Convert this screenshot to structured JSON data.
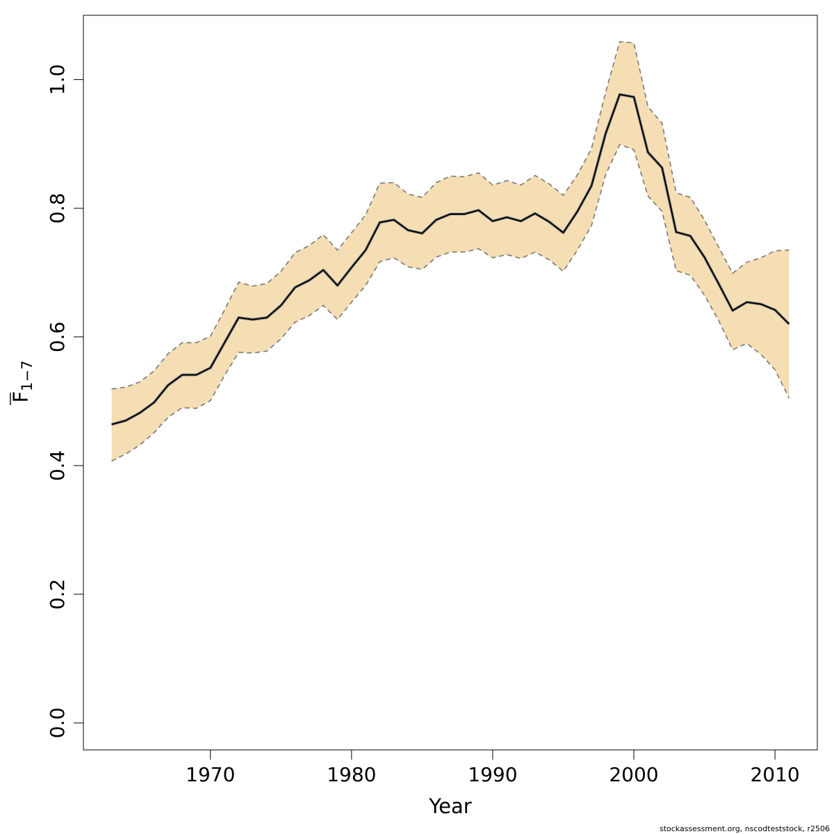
{
  "chart_data": {
    "type": "area",
    "xlabel": "Year",
    "ylabel": {
      "main": "F",
      "sub": "1−7"
    },
    "xlim": [
      1961,
      2013
    ],
    "ylim": [
      -0.042,
      1.1
    ],
    "xticks": [
      1970,
      1980,
      1990,
      2000,
      2010
    ],
    "yticks": [
      0.0,
      0.2,
      0.4,
      0.6,
      0.8,
      1.0
    ],
    "yticklabels": [
      "0.0",
      "0.2",
      "0.4",
      "0.6",
      "0.8",
      "1.0"
    ],
    "grid": false,
    "band_color": "#f5deb3",
    "line_color": "#000000",
    "bound_color": "#777777",
    "x": [
      1963,
      1964,
      1965,
      1966,
      1967,
      1968,
      1969,
      1970,
      1971,
      1972,
      1973,
      1974,
      1975,
      1976,
      1977,
      1978,
      1979,
      1980,
      1981,
      1982,
      1983,
      1984,
      1985,
      1986,
      1987,
      1988,
      1989,
      1990,
      1991,
      1992,
      1993,
      1994,
      1995,
      1996,
      1997,
      1998,
      1999,
      2000,
      2001,
      2002,
      2003,
      2004,
      2005,
      2006,
      2007,
      2008,
      2009,
      2010,
      2011
    ],
    "series": [
      {
        "role": "estimate",
        "values": [
          0.464,
          0.47,
          0.482,
          0.498,
          0.525,
          0.541,
          0.541,
          0.552,
          0.591,
          0.63,
          0.627,
          0.63,
          0.649,
          0.677,
          0.688,
          0.704,
          0.68,
          0.708,
          0.735,
          0.778,
          0.782,
          0.766,
          0.761,
          0.782,
          0.791,
          0.791,
          0.797,
          0.78,
          0.786,
          0.78,
          0.792,
          0.779,
          0.762,
          0.795,
          0.835,
          0.916,
          0.977,
          0.973,
          0.887,
          0.863,
          0.763,
          0.757,
          0.724,
          0.683,
          0.641,
          0.654,
          0.651,
          0.642,
          0.62
        ]
      },
      {
        "role": "upper",
        "values": [
          0.519,
          0.522,
          0.53,
          0.547,
          0.574,
          0.591,
          0.591,
          0.601,
          0.642,
          0.685,
          0.679,
          0.683,
          0.702,
          0.731,
          0.742,
          0.759,
          0.735,
          0.762,
          0.79,
          0.839,
          0.84,
          0.822,
          0.817,
          0.84,
          0.85,
          0.849,
          0.855,
          0.836,
          0.843,
          0.836,
          0.851,
          0.838,
          0.82,
          0.852,
          0.893,
          0.98,
          1.059,
          1.057,
          0.958,
          0.932,
          0.824,
          0.817,
          0.782,
          0.74,
          0.699,
          0.716,
          0.723,
          0.734,
          0.735
        ]
      },
      {
        "role": "lower",
        "values": [
          0.407,
          0.418,
          0.432,
          0.451,
          0.475,
          0.49,
          0.489,
          0.501,
          0.54,
          0.576,
          0.575,
          0.578,
          0.597,
          0.623,
          0.633,
          0.649,
          0.627,
          0.654,
          0.68,
          0.717,
          0.723,
          0.709,
          0.705,
          0.724,
          0.732,
          0.732,
          0.737,
          0.723,
          0.728,
          0.722,
          0.732,
          0.72,
          0.702,
          0.735,
          0.773,
          0.852,
          0.899,
          0.891,
          0.819,
          0.795,
          0.703,
          0.696,
          0.665,
          0.626,
          0.58,
          0.59,
          0.573,
          0.549,
          0.505
        ]
      }
    ]
  },
  "credit": "stockassessment.org, nscodteststock, r2506"
}
